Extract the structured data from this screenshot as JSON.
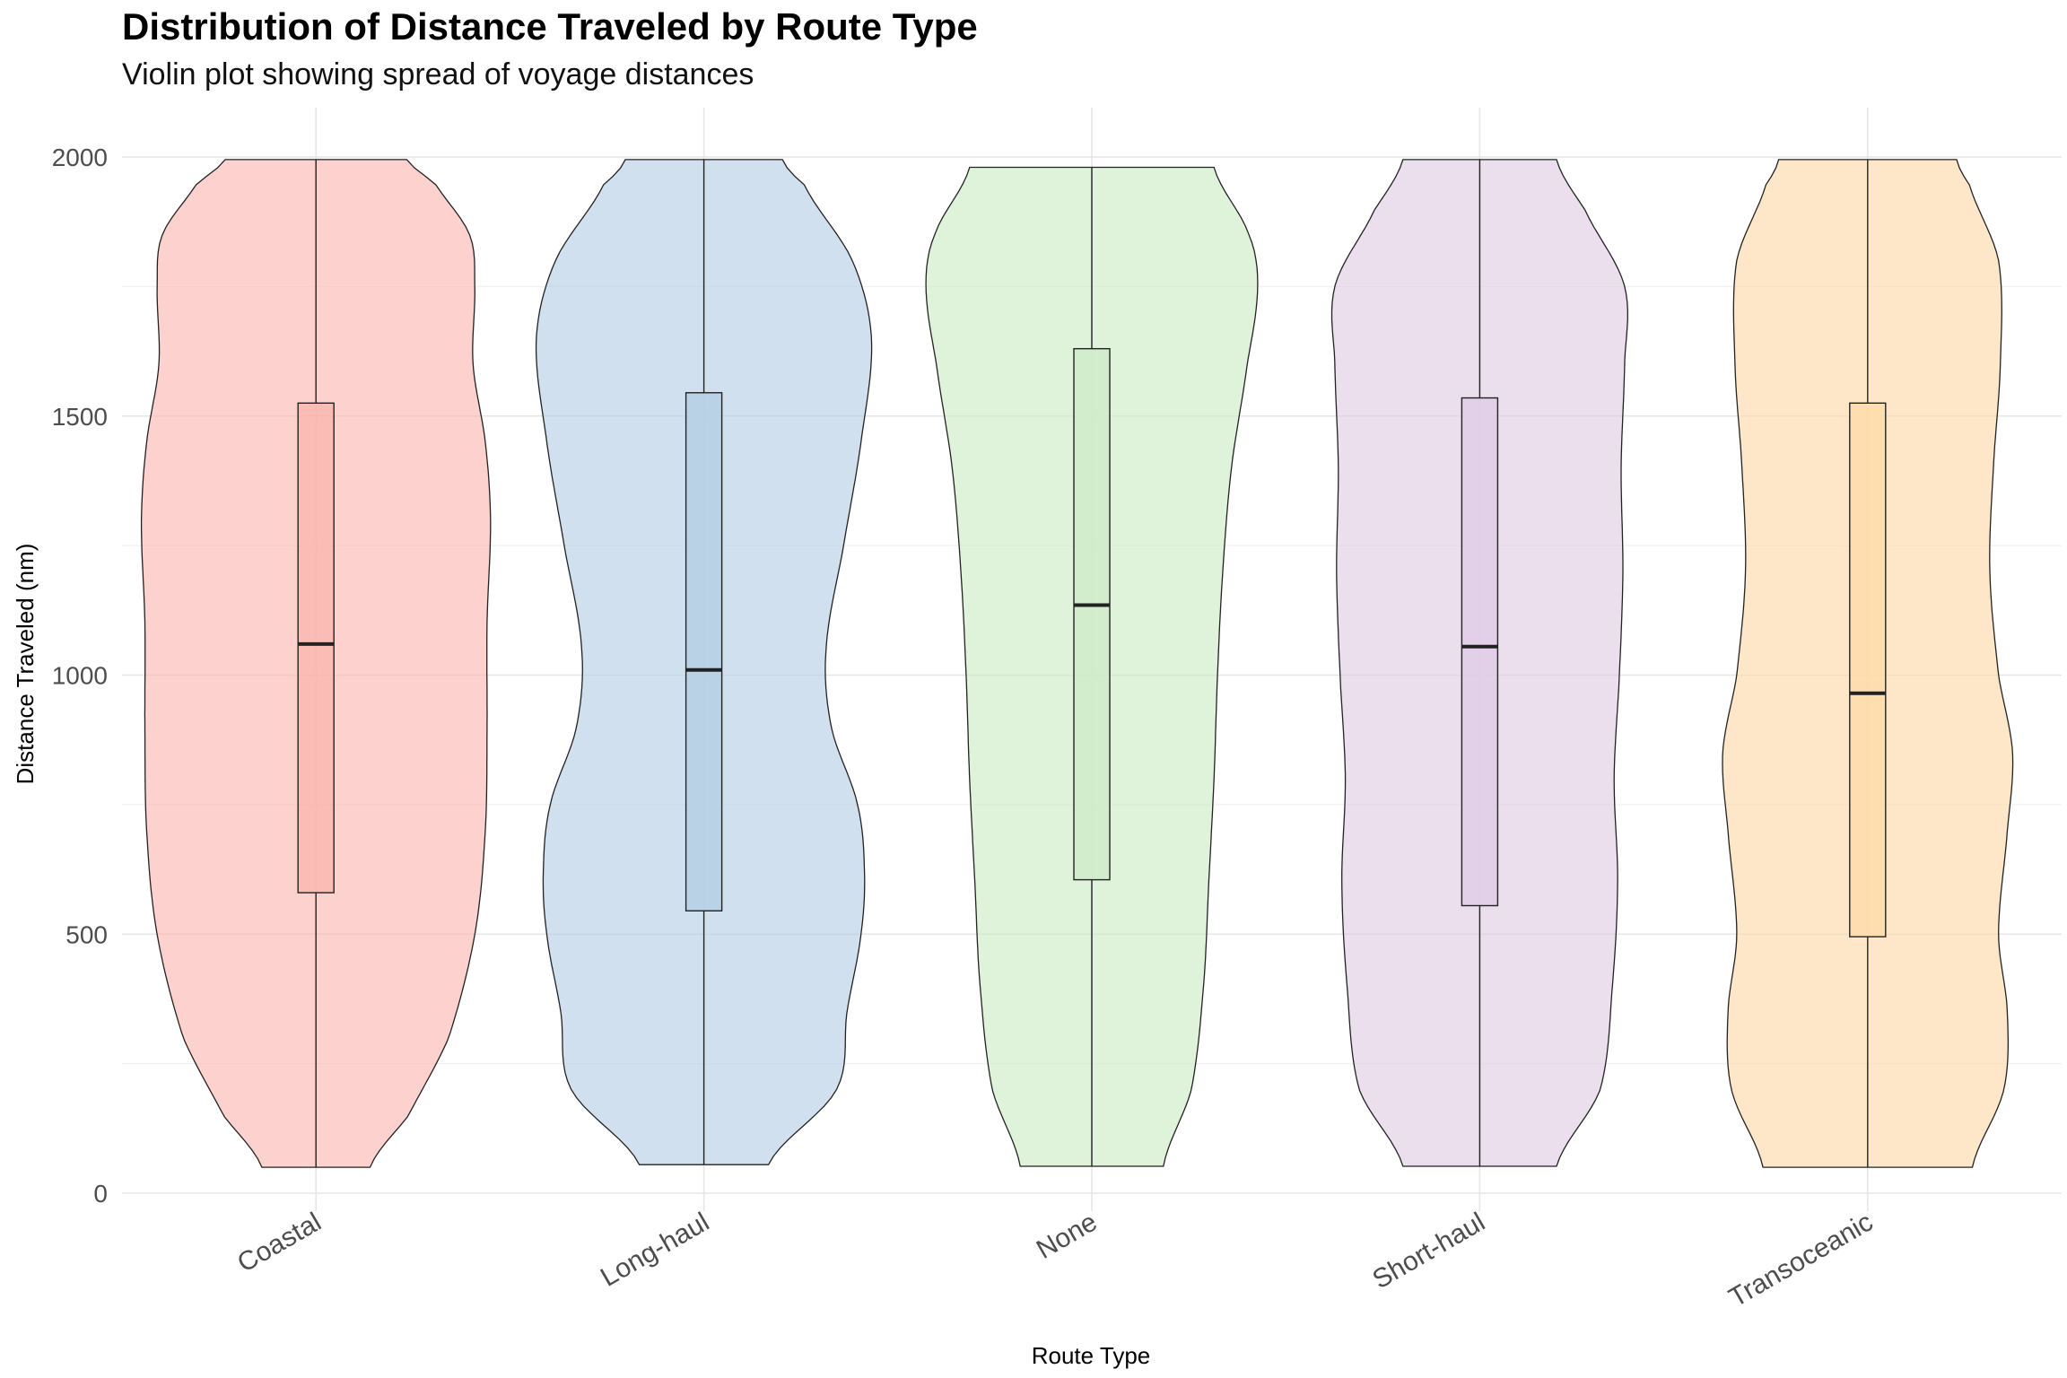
{
  "chart_data": {
    "type": "violin",
    "title": "Distribution of Distance Traveled by Route Type",
    "subtitle": "Violin plot showing spread of voyage distances",
    "xlabel": "Route Type",
    "ylabel": "Distance Traveled (nm)",
    "ylim": [
      0,
      2000
    ],
    "yticks": [
      0,
      500,
      1000,
      1500,
      2000
    ],
    "grid": true,
    "legend": "none",
    "categories": [
      "Coastal",
      "Long-haul",
      "None",
      "Short-haul",
      "Transoceanic"
    ],
    "series": [
      {
        "category": "Coastal",
        "color": "#FBB4AE",
        "min": 50,
        "q1": 580,
        "median": 1060,
        "q3": 1525,
        "max": 1995,
        "density_profile": [
          [
            50,
            0.31
          ],
          [
            150,
            0.53
          ],
          [
            300,
            0.76
          ],
          [
            500,
            0.91
          ],
          [
            700,
            0.97
          ],
          [
            900,
            0.98
          ],
          [
            1100,
            0.98
          ],
          [
            1300,
            1.0
          ],
          [
            1450,
            0.97
          ],
          [
            1600,
            0.9
          ],
          [
            1750,
            0.91
          ],
          [
            1850,
            0.88
          ],
          [
            1950,
            0.68
          ],
          [
            1995,
            0.52
          ]
        ]
      },
      {
        "category": "Long-haul",
        "color": "#B3CDE3",
        "min": 55,
        "q1": 545,
        "median": 1010,
        "q3": 1545,
        "max": 1995,
        "density_profile": [
          [
            55,
            0.37
          ],
          [
            200,
            0.76
          ],
          [
            350,
            0.82
          ],
          [
            500,
            0.9
          ],
          [
            620,
            0.92
          ],
          [
            750,
            0.88
          ],
          [
            900,
            0.73
          ],
          [
            1050,
            0.7
          ],
          [
            1250,
            0.8
          ],
          [
            1450,
            0.9
          ],
          [
            1650,
            0.96
          ],
          [
            1800,
            0.85
          ],
          [
            1950,
            0.57
          ],
          [
            1995,
            0.45
          ]
        ]
      },
      {
        "category": "None",
        "color": "#CCEBC5",
        "min": 52,
        "q1": 605,
        "median": 1135,
        "q3": 1630,
        "max": 1980,
        "density_profile": [
          [
            52,
            0.41
          ],
          [
            200,
            0.57
          ],
          [
            400,
            0.64
          ],
          [
            600,
            0.67
          ],
          [
            800,
            0.7
          ],
          [
            1000,
            0.72
          ],
          [
            1200,
            0.75
          ],
          [
            1400,
            0.8
          ],
          [
            1600,
            0.89
          ],
          [
            1750,
            0.95
          ],
          [
            1850,
            0.9
          ],
          [
            1980,
            0.7
          ]
        ]
      },
      {
        "category": "Short-haul",
        "color": "#DECBE4",
        "min": 52,
        "q1": 555,
        "median": 1055,
        "q3": 1535,
        "max": 1995,
        "density_profile": [
          [
            52,
            0.44
          ],
          [
            200,
            0.69
          ],
          [
            400,
            0.76
          ],
          [
            600,
            0.79
          ],
          [
            800,
            0.77
          ],
          [
            1000,
            0.8
          ],
          [
            1200,
            0.82
          ],
          [
            1400,
            0.81
          ],
          [
            1600,
            0.83
          ],
          [
            1750,
            0.83
          ],
          [
            1900,
            0.6
          ],
          [
            1995,
            0.44
          ]
        ]
      },
      {
        "category": "Transoceanic",
        "color": "#FED9A6",
        "min": 50,
        "q1": 495,
        "median": 965,
        "q3": 1525,
        "max": 1995,
        "density_profile": [
          [
            50,
            0.6
          ],
          [
            200,
            0.78
          ],
          [
            350,
            0.8
          ],
          [
            500,
            0.75
          ],
          [
            700,
            0.8
          ],
          [
            850,
            0.83
          ],
          [
            1000,
            0.75
          ],
          [
            1200,
            0.7
          ],
          [
            1400,
            0.72
          ],
          [
            1600,
            0.76
          ],
          [
            1800,
            0.75
          ],
          [
            1950,
            0.58
          ],
          [
            1995,
            0.51
          ]
        ]
      }
    ]
  }
}
